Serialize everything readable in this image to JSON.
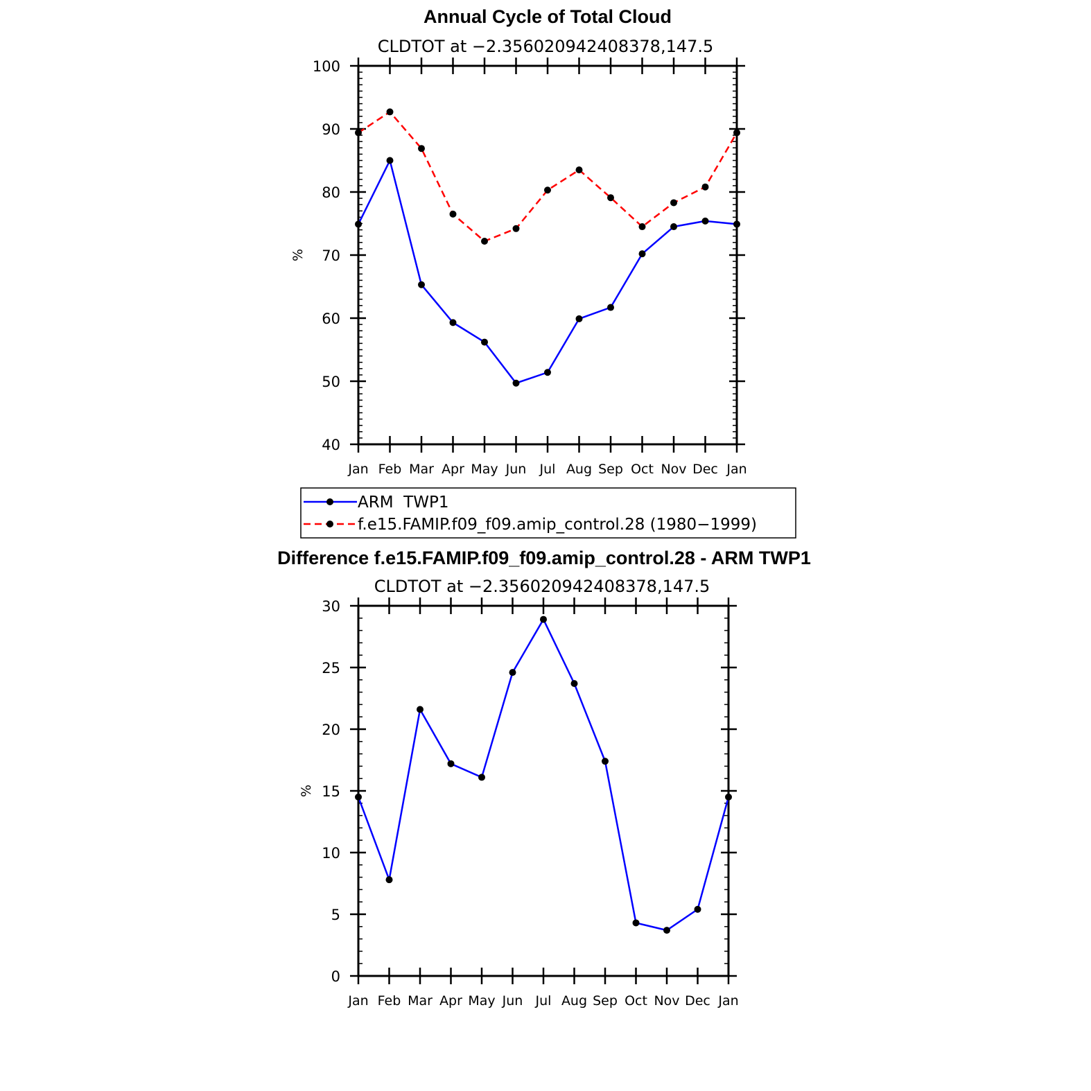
{
  "chart_data": [
    {
      "type": "line",
      "title": "Annual Cycle of Total Cloud",
      "subtitle": "CLDTOT at −2.356020942408378,147.5",
      "ylabel": "%",
      "xlabel": "",
      "categories": [
        "Jan",
        "Feb",
        "Mar",
        "Apr",
        "May",
        "Jun",
        "Jul",
        "Aug",
        "Sep",
        "Oct",
        "Nov",
        "Dec",
        "Jan"
      ],
      "ylim": [
        40,
        100
      ],
      "yticks": [
        "40",
        "50",
        "60",
        "70",
        "80",
        "90",
        "100"
      ],
      "series": [
        {
          "name": "ARM  TWP1",
          "color": "#0000ff",
          "dash": "solid",
          "values": [
            74.9,
            85.0,
            65.3,
            59.3,
            56.2,
            49.7,
            51.4,
            59.9,
            61.7,
            70.2,
            74.5,
            75.4,
            74.9
          ]
        },
        {
          "name": "f.e15.FAMIP.f09_f09.amip_control.28 (1980−1999)",
          "color": "#ff0000",
          "dash": "dashed",
          "values": [
            89.4,
            92.7,
            86.9,
            76.5,
            72.2,
            74.2,
            80.3,
            83.5,
            79.1,
            74.5,
            78.3,
            80.8,
            89.4
          ]
        }
      ],
      "legend_position": "bottom"
    },
    {
      "type": "line",
      "title": "Difference f.e15.FAMIP.f09_f09.amip_control.28 - ARM TWP1",
      "subtitle": "CLDTOT at −2.356020942408378,147.5",
      "ylabel": "%",
      "xlabel": "",
      "categories": [
        "Jan",
        "Feb",
        "Mar",
        "Apr",
        "May",
        "Jun",
        "Jul",
        "Aug",
        "Sep",
        "Oct",
        "Nov",
        "Dec",
        "Jan"
      ],
      "ylim": [
        0,
        30
      ],
      "yticks": [
        "0",
        "5",
        "10",
        "15",
        "20",
        "25",
        "30"
      ],
      "series": [
        {
          "name": "Difference",
          "color": "#0000ff",
          "dash": "solid",
          "values": [
            14.5,
            7.8,
            21.6,
            17.2,
            16.1,
            24.6,
            28.9,
            23.7,
            17.4,
            4.3,
            3.7,
            5.4,
            14.5
          ]
        }
      ]
    }
  ]
}
